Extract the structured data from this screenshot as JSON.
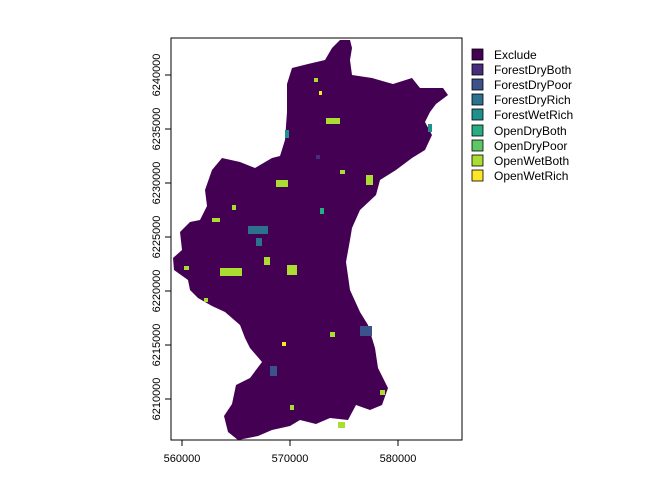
{
  "map": {
    "x_ticks": [
      "560000",
      "570000",
      "580000"
    ],
    "y_ticks": [
      "6210000",
      "6215000",
      "6220000",
      "6225000",
      "6230000",
      "6235000",
      "6240000"
    ]
  },
  "legend": [
    {
      "label": "Exclude",
      "color": "#440154"
    },
    {
      "label": "ForestDryBoth",
      "color": "#472D7B"
    },
    {
      "label": "ForestDryPoor",
      "color": "#3B528B"
    },
    {
      "label": "ForestDryRich",
      "color": "#2C728E"
    },
    {
      "label": "ForestWetRich",
      "color": "#21908C"
    },
    {
      "label": "OpenDryBoth",
      "color": "#27AD81"
    },
    {
      "label": "OpenDryPoor",
      "color": "#5DC863"
    },
    {
      "label": "OpenWetBoth",
      "color": "#AADC32"
    },
    {
      "label": "OpenWetRich",
      "color": "#FDE725"
    }
  ]
}
